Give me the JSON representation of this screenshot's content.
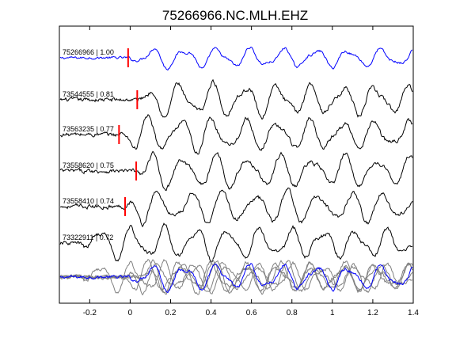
{
  "chart_data": {
    "type": "line",
    "title": "75266966.NC.MLH.EHZ",
    "xlabel": "",
    "ylabel": "",
    "xlim": [
      -0.35,
      1.4
    ],
    "xticks": [
      -0.2,
      0,
      0.2,
      0.4,
      0.6,
      0.8,
      1,
      1.2,
      1.4
    ],
    "xtick_labels": [
      "-0.2",
      "0",
      "0.2",
      "0.4",
      "0.6",
      "0.8",
      "1",
      "1.2",
      "1.4"
    ],
    "grid": false,
    "legend": "none",
    "colors": {
      "reference": "#0000ff",
      "trace": "#000000",
      "overlay": "#808080",
      "pick": "#ff0000"
    },
    "series": [
      {
        "label": "75266966 | 1.00",
        "pick_time": -0.01,
        "color": "#0000ff"
      },
      {
        "label": "73544555 | 0.81",
        "pick_time": 0.035,
        "color": "#000000"
      },
      {
        "label": "73563235 | 0.77",
        "pick_time": -0.055,
        "color": "#000000"
      },
      {
        "label": "73558620 | 0.75",
        "pick_time": 0.03,
        "color": "#000000"
      },
      {
        "label": "73558410 | 0.74",
        "pick_time": -0.025,
        "color": "#000000"
      },
      {
        "label": "73322911 | 0.72",
        "pick_time": null,
        "color": "#000000"
      }
    ]
  }
}
